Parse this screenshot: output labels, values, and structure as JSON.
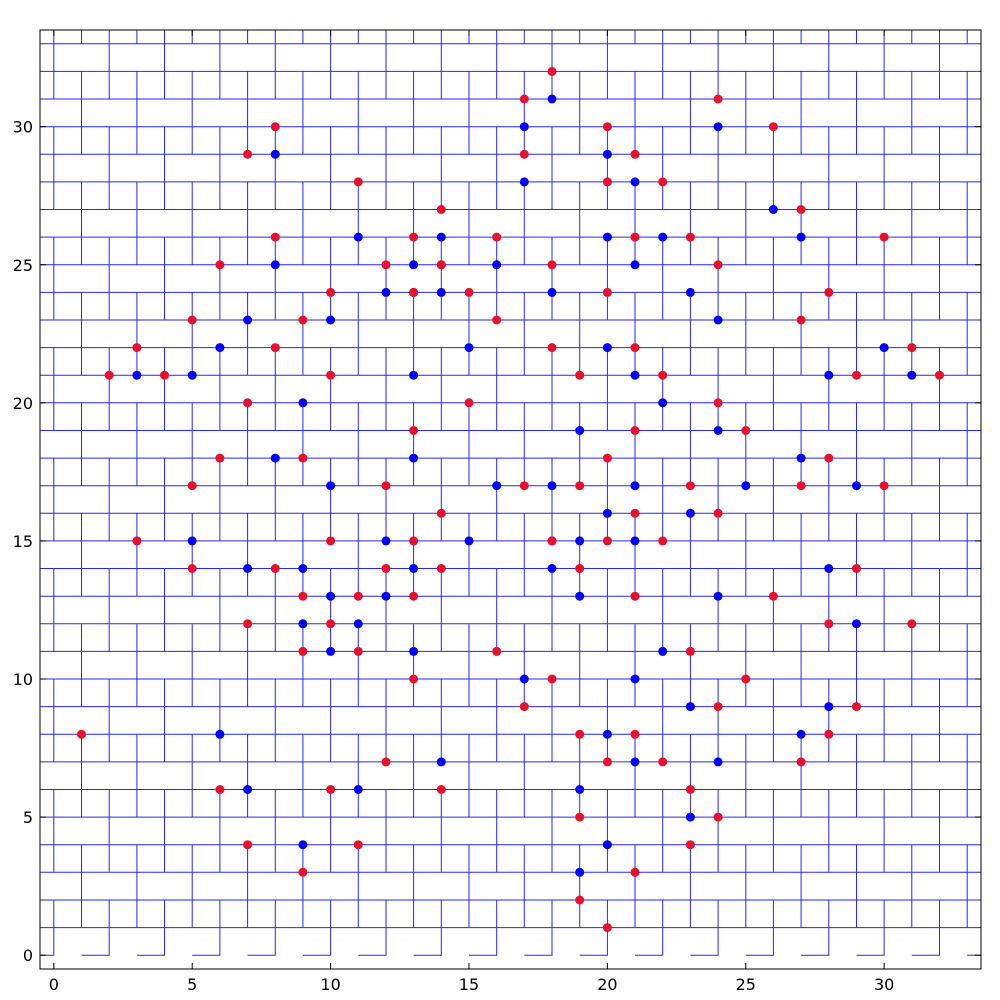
{
  "chart_data": {
    "type": "scatter",
    "title": "",
    "xlabel": "",
    "ylabel": "",
    "xlim": [
      -0.5,
      33.5
    ],
    "ylim": [
      -0.5,
      33.5
    ],
    "x_ticks": [
      0,
      5,
      10,
      15,
      20,
      25,
      30
    ],
    "y_ticks": [
      0,
      5,
      10,
      15,
      20,
      25,
      30
    ],
    "x_tick_labels": [
      "0",
      "5",
      "10",
      "15",
      "20",
      "25",
      "30"
    ],
    "y_tick_labels": [
      "0",
      "5",
      "10",
      "15",
      "20",
      "25",
      "30"
    ],
    "grid": false,
    "legend": "none",
    "background_pattern": {
      "description": "interlocking blue staircase paths tiling the plot area",
      "color": "#0000ff",
      "cell": 1
    },
    "series": [
      {
        "color": "#0000ff",
        "points": [
          [
            3,
            21
          ],
          [
            5,
            21
          ],
          [
            6,
            22
          ],
          [
            7,
            23
          ],
          [
            8,
            25
          ],
          [
            8,
            29
          ],
          [
            9,
            20
          ],
          [
            8,
            18
          ],
          [
            10,
            23
          ],
          [
            10,
            17
          ],
          [
            11,
            26
          ],
          [
            12,
            24
          ],
          [
            13,
            24
          ],
          [
            13,
            25
          ],
          [
            14,
            25
          ],
          [
            14,
            24
          ],
          [
            14,
            26
          ],
          [
            13,
            21
          ],
          [
            13,
            18
          ],
          [
            15,
            22
          ],
          [
            16,
            25
          ],
          [
            16,
            17
          ],
          [
            17,
            30
          ],
          [
            17,
            28
          ],
          [
            18,
            31
          ],
          [
            18,
            24
          ],
          [
            18,
            17
          ],
          [
            18,
            14
          ],
          [
            18,
            15
          ],
          [
            19,
            15
          ],
          [
            19,
            13
          ],
          [
            19,
            19
          ],
          [
            20,
            29
          ],
          [
            20,
            22
          ],
          [
            20,
            26
          ],
          [
            20,
            16
          ],
          [
            20,
            8
          ],
          [
            20,
            4
          ],
          [
            19,
            6
          ],
          [
            19,
            3
          ],
          [
            21,
            28
          ],
          [
            21,
            25
          ],
          [
            21,
            21
          ],
          [
            21,
            17
          ],
          [
            21,
            15
          ],
          [
            21,
            10
          ],
          [
            21,
            7
          ],
          [
            22,
            26
          ],
          [
            22,
            20
          ],
          [
            22,
            11
          ],
          [
            23,
            24
          ],
          [
            23,
            16
          ],
          [
            23,
            9
          ],
          [
            23,
            5
          ],
          [
            24,
            30
          ],
          [
            24,
            23
          ],
          [
            24,
            19
          ],
          [
            24,
            13
          ],
          [
            24,
            7
          ],
          [
            25,
            17
          ],
          [
            26,
            27
          ],
          [
            27,
            26
          ],
          [
            27,
            18
          ],
          [
            27,
            8
          ],
          [
            28,
            21
          ],
          [
            28,
            14
          ],
          [
            28,
            9
          ],
          [
            29,
            17
          ],
          [
            29,
            12
          ],
          [
            30,
            22
          ],
          [
            31,
            21
          ],
          [
            5,
            15
          ],
          [
            6,
            8
          ],
          [
            7,
            14
          ],
          [
            7,
            6
          ],
          [
            9,
            14
          ],
          [
            9,
            12
          ],
          [
            9,
            4
          ],
          [
            10,
            13
          ],
          [
            10,
            11
          ],
          [
            11,
            12
          ],
          [
            11,
            6
          ],
          [
            12,
            15
          ],
          [
            12,
            13
          ],
          [
            13,
            14
          ],
          [
            13,
            11
          ],
          [
            14,
            7
          ],
          [
            15,
            15
          ],
          [
            17,
            10
          ]
        ]
      },
      {
        "color": "#e8102a",
        "points": [
          [
            1,
            8
          ],
          [
            2,
            21
          ],
          [
            3,
            22
          ],
          [
            3,
            15
          ],
          [
            4,
            21
          ],
          [
            5,
            23
          ],
          [
            5,
            17
          ],
          [
            5,
            14
          ],
          [
            6,
            25
          ],
          [
            6,
            18
          ],
          [
            6,
            6
          ],
          [
            7,
            29
          ],
          [
            7,
            20
          ],
          [
            7,
            12
          ],
          [
            7,
            4
          ],
          [
            8,
            30
          ],
          [
            8,
            26
          ],
          [
            8,
            22
          ],
          [
            8,
            14
          ],
          [
            9,
            23
          ],
          [
            9,
            18
          ],
          [
            9,
            13
          ],
          [
            9,
            11
          ],
          [
            9,
            3
          ],
          [
            10,
            24
          ],
          [
            10,
            21
          ],
          [
            10,
            15
          ],
          [
            10,
            12
          ],
          [
            10,
            6
          ],
          [
            11,
            28
          ],
          [
            11,
            13
          ],
          [
            11,
            11
          ],
          [
            11,
            4
          ],
          [
            12,
            25
          ],
          [
            12,
            17
          ],
          [
            12,
            14
          ],
          [
            12,
            7
          ],
          [
            13,
            26
          ],
          [
            13,
            24
          ],
          [
            13,
            19
          ],
          [
            13,
            15
          ],
          [
            13,
            13
          ],
          [
            13,
            10
          ],
          [
            14,
            27
          ],
          [
            14,
            25
          ],
          [
            14,
            16
          ],
          [
            14,
            14
          ],
          [
            14,
            6
          ],
          [
            15,
            24
          ],
          [
            15,
            20
          ],
          [
            16,
            26
          ],
          [
            16,
            23
          ],
          [
            16,
            11
          ],
          [
            17,
            31
          ],
          [
            17,
            29
          ],
          [
            17,
            17
          ],
          [
            17,
            9
          ],
          [
            18,
            32
          ],
          [
            18,
            25
          ],
          [
            18,
            22
          ],
          [
            18,
            15
          ],
          [
            18,
            10
          ],
          [
            19,
            21
          ],
          [
            19,
            17
          ],
          [
            19,
            14
          ],
          [
            19,
            8
          ],
          [
            19,
            5
          ],
          [
            19,
            2
          ],
          [
            20,
            30
          ],
          [
            20,
            28
          ],
          [
            20,
            24
          ],
          [
            20,
            18
          ],
          [
            20,
            15
          ],
          [
            20,
            7
          ],
          [
            20,
            1
          ],
          [
            21,
            29
          ],
          [
            21,
            26
          ],
          [
            21,
            22
          ],
          [
            21,
            19
          ],
          [
            21,
            16
          ],
          [
            21,
            13
          ],
          [
            21,
            8
          ],
          [
            21,
            3
          ],
          [
            22,
            28
          ],
          [
            22,
            21
          ],
          [
            22,
            15
          ],
          [
            22,
            7
          ],
          [
            23,
            26
          ],
          [
            23,
            17
          ],
          [
            23,
            11
          ],
          [
            23,
            6
          ],
          [
            23,
            4
          ],
          [
            24,
            31
          ],
          [
            24,
            25
          ],
          [
            24,
            20
          ],
          [
            24,
            16
          ],
          [
            24,
            9
          ],
          [
            24,
            5
          ],
          [
            25,
            19
          ],
          [
            25,
            10
          ],
          [
            26,
            30
          ],
          [
            26,
            13
          ],
          [
            27,
            27
          ],
          [
            27,
            23
          ],
          [
            27,
            17
          ],
          [
            27,
            7
          ],
          [
            28,
            24
          ],
          [
            28,
            18
          ],
          [
            28,
            12
          ],
          [
            28,
            8
          ],
          [
            29,
            21
          ],
          [
            29,
            14
          ],
          [
            29,
            9
          ],
          [
            30,
            26
          ],
          [
            30,
            17
          ],
          [
            31,
            22
          ],
          [
            31,
            12
          ],
          [
            32,
            21
          ]
        ]
      }
    ]
  }
}
